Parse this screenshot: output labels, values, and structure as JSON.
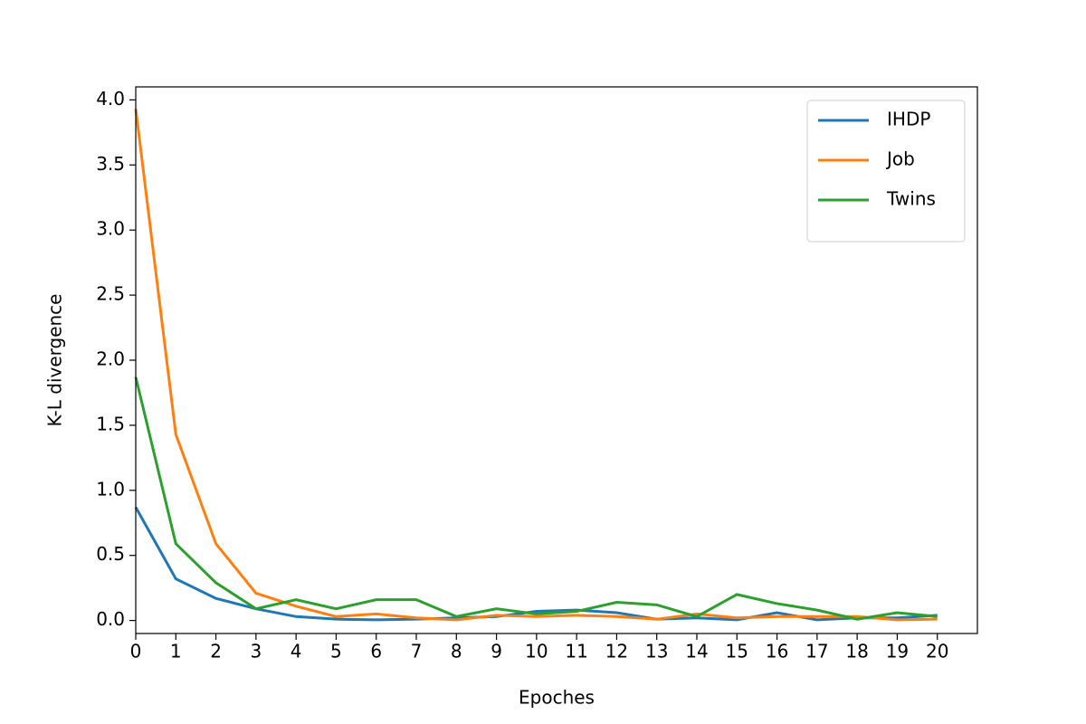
{
  "chart_data": {
    "type": "line",
    "xlabel": "Epoches",
    "ylabel": "K-L divergence",
    "x": [
      0,
      1,
      2,
      3,
      4,
      5,
      6,
      7,
      8,
      9,
      10,
      11,
      12,
      13,
      14,
      15,
      16,
      17,
      18,
      19,
      20
    ],
    "series": [
      {
        "name": "IHDP",
        "color": "#1f77b4",
        "values": [
          0.87,
          0.32,
          0.17,
          0.09,
          0.03,
          0.01,
          0.005,
          0.01,
          0.02,
          0.03,
          0.07,
          0.08,
          0.06,
          0.01,
          0.02,
          0.005,
          0.06,
          0.005,
          0.02,
          0.02,
          0.04
        ]
      },
      {
        "name": "Job",
        "color": "#ff7f0e",
        "values": [
          3.93,
          1.43,
          0.59,
          0.21,
          0.11,
          0.03,
          0.05,
          0.02,
          0.005,
          0.04,
          0.03,
          0.04,
          0.03,
          0.01,
          0.05,
          0.02,
          0.03,
          0.03,
          0.03,
          0.005,
          0.01
        ]
      },
      {
        "name": "Twins",
        "color": "#2ca02c",
        "values": [
          1.87,
          0.59,
          0.29,
          0.09,
          0.16,
          0.09,
          0.16,
          0.16,
          0.03,
          0.09,
          0.05,
          0.07,
          0.14,
          0.12,
          0.03,
          0.2,
          0.13,
          0.08,
          0.01,
          0.06,
          0.03
        ]
      }
    ],
    "xlim": [
      0,
      21
    ],
    "ylim": [
      -0.1,
      4.1
    ],
    "xticks": [
      0,
      1,
      2,
      3,
      4,
      5,
      6,
      7,
      8,
      9,
      10,
      11,
      12,
      13,
      14,
      15,
      16,
      17,
      18,
      19,
      20
    ],
    "yticks": [
      {
        "value": 0,
        "label": "0.0"
      },
      {
        "value": 0.5,
        "label": "0.5"
      },
      {
        "value": 1,
        "label": "1.0"
      },
      {
        "value": 1.5,
        "label": "1.5"
      },
      {
        "value": 2,
        "label": "2.0"
      },
      {
        "value": 2.5,
        "label": "2.5"
      },
      {
        "value": 3,
        "label": "3.0"
      },
      {
        "value": 3.5,
        "label": "3.5"
      },
      {
        "value": 4,
        "label": "4.0"
      }
    ],
    "grid": false,
    "legend": "upper right"
  }
}
